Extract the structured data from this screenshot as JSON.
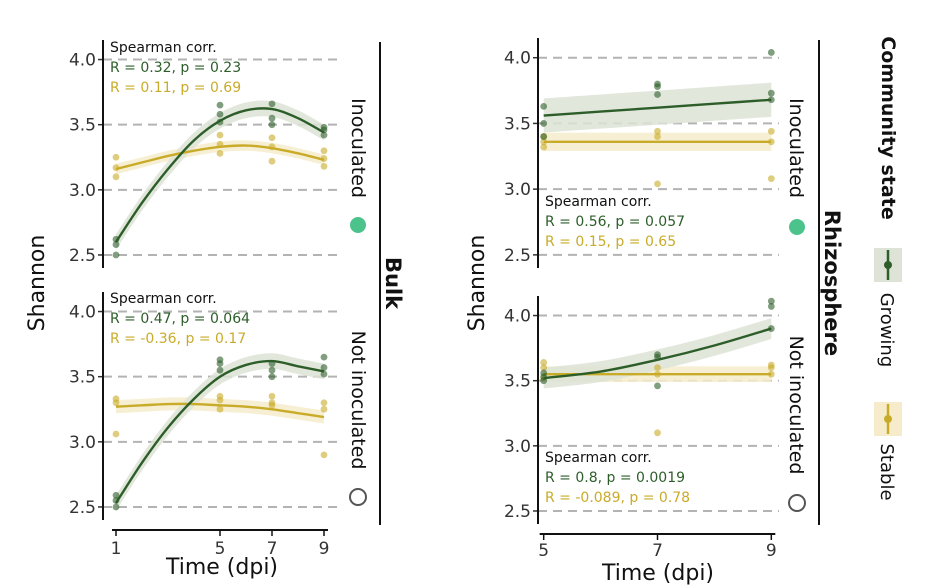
{
  "colors": {
    "growing": "#2d5e2a",
    "stable": "#c9ab2a",
    "growing_band": "#dde3d6",
    "stable_band": "#f6eccb",
    "grid": "#b3b3b3",
    "inoculated_marker": "#4cc38a"
  },
  "chart_data": {
    "type": "scatter",
    "ylabel": "Shannon",
    "ylim": [
      2.4,
      4.15
    ],
    "yticks": [
      "4.0",
      "3.5",
      "3.0",
      "2.5"
    ],
    "legend": {
      "title": "Community state",
      "entries": [
        {
          "name": "Growing",
          "color": "#2d5e2a"
        },
        {
          "name": "Stable",
          "color": "#c9ab2a"
        }
      ]
    },
    "panels": [
      {
        "compartment": "Bulk",
        "treatment": "Inoculated",
        "xlabel": "Time (dpi)",
        "xlim": [
          0.5,
          9.5
        ],
        "xticks": [
          "1",
          "5",
          "7",
          "9"
        ],
        "annotation": {
          "title": "Spearman corr.",
          "growing": "R = 0.32, p = 0.23",
          "stable": "R = 0.11, p = 0.69"
        },
        "series": [
          {
            "name": "Growing",
            "points": [
              [
                1,
                2.5
              ],
              [
                1,
                2.58
              ],
              [
                1,
                2.62
              ],
              [
                5,
                3.52
              ],
              [
                5,
                3.58
              ],
              [
                5,
                3.65
              ],
              [
                7,
                3.5
              ],
              [
                7,
                3.55
              ],
              [
                7,
                3.66
              ],
              [
                9,
                3.42
              ],
              [
                9,
                3.46
              ],
              [
                9,
                3.48
              ]
            ],
            "fit": [
              [
                1,
                2.6
              ],
              [
                2,
                2.9
              ],
              [
                3,
                3.16
              ],
              [
                4,
                3.38
              ],
              [
                5,
                3.53
              ],
              [
                6,
                3.61
              ],
              [
                7,
                3.62
              ],
              [
                8,
                3.55
              ],
              [
                9,
                3.44
              ]
            ],
            "band": 0.06
          },
          {
            "name": "Stable",
            "points": [
              [
                1,
                3.1
              ],
              [
                1,
                3.17
              ],
              [
                1,
                3.25
              ],
              [
                5,
                3.28
              ],
              [
                5,
                3.35
              ],
              [
                5,
                3.42
              ],
              [
                7,
                3.22
              ],
              [
                7,
                3.33
              ],
              [
                7,
                3.4
              ],
              [
                9,
                3.18
              ],
              [
                9,
                3.24
              ],
              [
                9,
                3.3
              ]
            ],
            "fit": [
              [
                1,
                3.16
              ],
              [
                2,
                3.21
              ],
              [
                3,
                3.26
              ],
              [
                4,
                3.3
              ],
              [
                5,
                3.33
              ],
              [
                6,
                3.34
              ],
              [
                7,
                3.32
              ],
              [
                8,
                3.28
              ],
              [
                9,
                3.23
              ]
            ],
            "band": 0.04
          }
        ]
      },
      {
        "compartment": "Bulk",
        "treatment": "Not inoculated",
        "xlabel": "Time (dpi)",
        "xlim": [
          0.5,
          9.5
        ],
        "xticks": [
          "1",
          "5",
          "7",
          "9"
        ],
        "annotation": {
          "title": "Spearman corr.",
          "growing": "R = 0.47, p = 0.064",
          "stable": "R = -0.36, p = 0.17"
        },
        "series": [
          {
            "name": "Growing",
            "points": [
              [
                1,
                2.5
              ],
              [
                1,
                2.55
              ],
              [
                1,
                2.59
              ],
              [
                5,
                3.55
              ],
              [
                5,
                3.6
              ],
              [
                5,
                3.63
              ],
              [
                7,
                3.5
              ],
              [
                7,
                3.55
              ],
              [
                7,
                3.6
              ],
              [
                9,
                3.52
              ],
              [
                9,
                3.57
              ],
              [
                9,
                3.65
              ]
            ],
            "fit": [
              [
                1,
                2.53
              ],
              [
                2,
                2.84
              ],
              [
                3,
                3.11
              ],
              [
                4,
                3.33
              ],
              [
                5,
                3.5
              ],
              [
                6,
                3.59
              ],
              [
                7,
                3.62
              ],
              [
                8,
                3.58
              ],
              [
                9,
                3.54
              ]
            ],
            "band": 0.06
          },
          {
            "name": "Stable",
            "points": [
              [
                1,
                3.06
              ],
              [
                1,
                3.3
              ],
              [
                1,
                3.33
              ],
              [
                5,
                3.25
              ],
              [
                5,
                3.32
              ],
              [
                5,
                3.35
              ],
              [
                7,
                3.28
              ],
              [
                7,
                3.3
              ],
              [
                7,
                3.35
              ],
              [
                9,
                2.9
              ],
              [
                9,
                3.25
              ],
              [
                9,
                3.3
              ]
            ],
            "fit": [
              [
                1,
                3.27
              ],
              [
                2,
                3.28
              ],
              [
                3,
                3.29
              ],
              [
                4,
                3.29
              ],
              [
                5,
                3.28
              ],
              [
                6,
                3.27
              ],
              [
                7,
                3.25
              ],
              [
                8,
                3.22
              ],
              [
                9,
                3.19
              ]
            ],
            "band": 0.05
          }
        ]
      },
      {
        "compartment": "Rhizosphere",
        "treatment": "Inoculated",
        "xlabel": "Time (dpi)",
        "xlim": [
          4.9,
          9.1
        ],
        "xticks": [
          "5",
          "7",
          "9"
        ],
        "annotation": {
          "title": "Spearman corr.",
          "growing": "R = 0.56, p = 0.057",
          "stable": "R = 0.15, p = 0.65"
        },
        "series": [
          {
            "name": "Growing",
            "points": [
              [
                5,
                3.4
              ],
              [
                5,
                3.5
              ],
              [
                5,
                3.63
              ],
              [
                7,
                3.72
              ],
              [
                7,
                3.78
              ],
              [
                7,
                3.8
              ],
              [
                9,
                3.68
              ],
              [
                9,
                3.73
              ],
              [
                9,
                4.04
              ]
            ],
            "fit": [
              [
                5,
                3.56
              ],
              [
                6,
                3.59
              ],
              [
                7,
                3.62
              ],
              [
                8,
                3.65
              ],
              [
                9,
                3.68
              ]
            ],
            "band": 0.13
          },
          {
            "name": "Stable",
            "points": [
              [
                5,
                3.32
              ],
              [
                5,
                3.36
              ],
              [
                5,
                3.4
              ],
              [
                7,
                3.04
              ],
              [
                7,
                3.4
              ],
              [
                7,
                3.44
              ],
              [
                9,
                3.08
              ],
              [
                9,
                3.36
              ],
              [
                9,
                3.44
              ]
            ],
            "fit": [
              [
                5,
                3.36
              ],
              [
                7,
                3.36
              ],
              [
                9,
                3.36
              ]
            ],
            "band": 0.07
          }
        ]
      },
      {
        "compartment": "Rhizosphere",
        "treatment": "Not inoculated",
        "xlabel": "Time (dpi)",
        "xlim": [
          4.9,
          9.1
        ],
        "xticks": [
          "5",
          "7",
          "9"
        ],
        "annotation": {
          "title": "Spearman corr.",
          "growing": "R = 0.8, p = 0.0019",
          "stable": "R = -0.089, p = 0.78"
        },
        "series": [
          {
            "name": "Growing",
            "points": [
              [
                5,
                3.5
              ],
              [
                5,
                3.53
              ],
              [
                5,
                3.56
              ],
              [
                7,
                3.46
              ],
              [
                7,
                3.68
              ],
              [
                7,
                3.7
              ],
              [
                9,
                3.9
              ],
              [
                9,
                4.07
              ],
              [
                9,
                4.11
              ]
            ],
            "fit": [
              [
                5,
                3.52
              ],
              [
                6,
                3.57
              ],
              [
                7,
                3.66
              ],
              [
                8,
                3.77
              ],
              [
                9,
                3.9
              ]
            ],
            "band": 0.08
          },
          {
            "name": "Stable",
            "points": [
              [
                5,
                3.52
              ],
              [
                5,
                3.6
              ],
              [
                5,
                3.64
              ],
              [
                7,
                3.1
              ],
              [
                7,
                3.55
              ],
              [
                7,
                3.6
              ],
              [
                9,
                3.55
              ],
              [
                9,
                3.6
              ],
              [
                9,
                3.62
              ]
            ],
            "fit": [
              [
                5,
                3.55
              ],
              [
                7,
                3.55
              ],
              [
                9,
                3.55
              ]
            ],
            "band": 0.06
          }
        ]
      }
    ]
  }
}
